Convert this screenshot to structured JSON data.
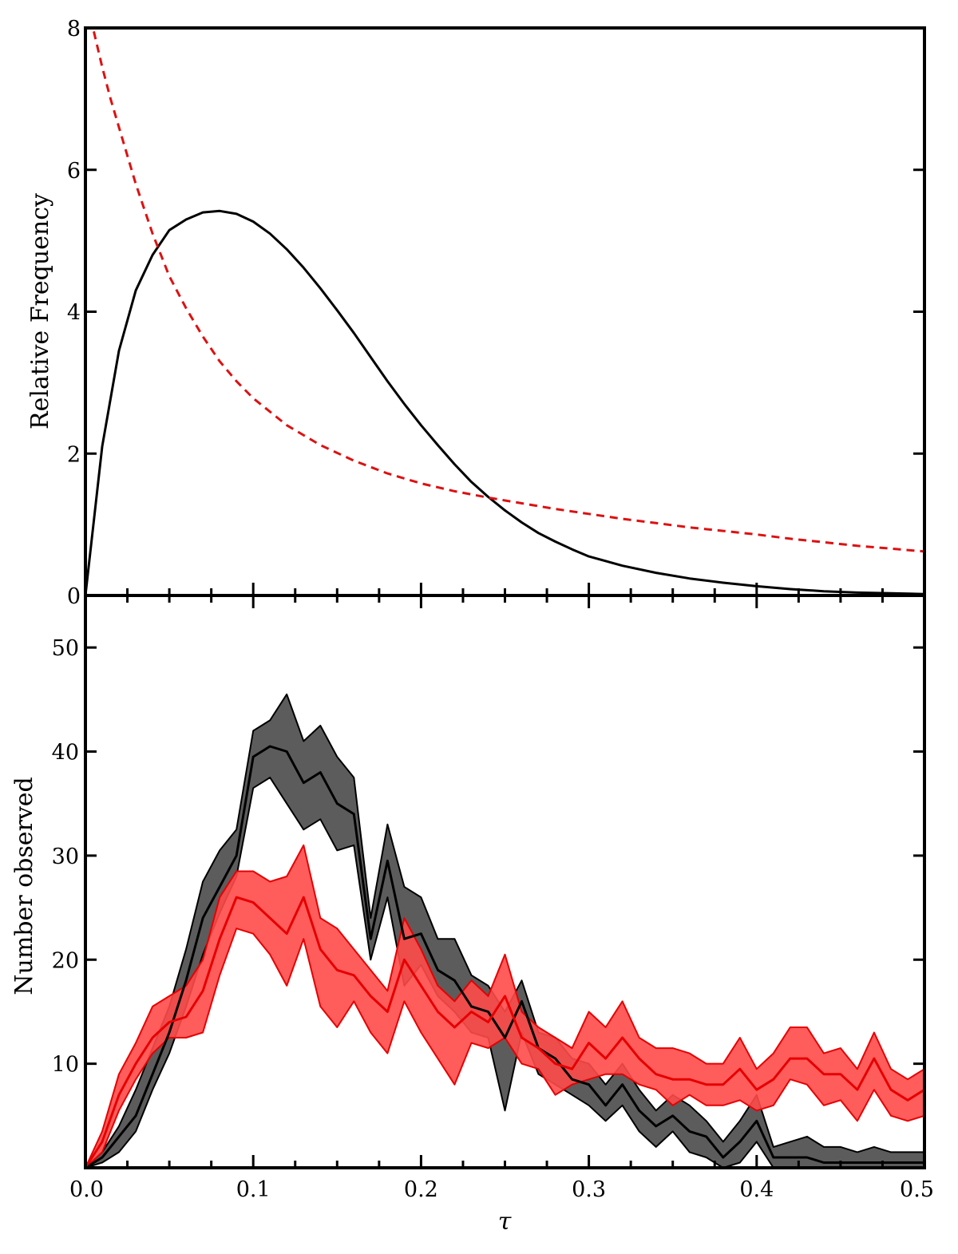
{
  "chart_data": [
    {
      "type": "line",
      "title": "",
      "xlabel": "",
      "ylabel": "Relative Frequency",
      "xlim": [
        0.0,
        0.5
      ],
      "ylim": [
        0,
        8
      ],
      "yticks": [
        0,
        2,
        4,
        6,
        8
      ],
      "ytick_labels": [
        "0",
        "2",
        "4",
        "6",
        "8"
      ],
      "grid": false,
      "colors": [
        "#000000",
        "#dd1111"
      ],
      "series": [
        {
          "style": "solid",
          "x": [
            0.0,
            0.01,
            0.02,
            0.03,
            0.04,
            0.05,
            0.06,
            0.07,
            0.08,
            0.09,
            0.1,
            0.11,
            0.12,
            0.13,
            0.14,
            0.15,
            0.16,
            0.17,
            0.18,
            0.19,
            0.2,
            0.21,
            0.22,
            0.23,
            0.24,
            0.25,
            0.26,
            0.27,
            0.28,
            0.29,
            0.3,
            0.32,
            0.34,
            0.36,
            0.38,
            0.4,
            0.42,
            0.44,
            0.46,
            0.48,
            0.5
          ],
          "y": [
            0.0,
            2.1,
            3.45,
            4.3,
            4.8,
            5.15,
            5.3,
            5.4,
            5.42,
            5.38,
            5.27,
            5.1,
            4.88,
            4.62,
            4.33,
            4.02,
            3.7,
            3.36,
            3.02,
            2.7,
            2.4,
            2.12,
            1.85,
            1.6,
            1.39,
            1.2,
            1.03,
            0.88,
            0.76,
            0.65,
            0.55,
            0.42,
            0.32,
            0.24,
            0.18,
            0.13,
            0.09,
            0.06,
            0.04,
            0.03,
            0.02
          ]
        },
        {
          "style": "dashed",
          "x": [
            0.005,
            0.01,
            0.015,
            0.02,
            0.03,
            0.04,
            0.05,
            0.06,
            0.07,
            0.08,
            0.09,
            0.1,
            0.12,
            0.14,
            0.16,
            0.18,
            0.2,
            0.22,
            0.24,
            0.26,
            0.28,
            0.3,
            0.32,
            0.34,
            0.36,
            0.38,
            0.4,
            0.42,
            0.44,
            0.46,
            0.48,
            0.5
          ],
          "y": [
            7.95,
            7.45,
            7.0,
            6.6,
            5.8,
            5.1,
            4.5,
            4.05,
            3.65,
            3.3,
            3.02,
            2.78,
            2.4,
            2.12,
            1.9,
            1.72,
            1.58,
            1.47,
            1.38,
            1.3,
            1.22,
            1.15,
            1.08,
            1.02,
            0.96,
            0.91,
            0.86,
            0.8,
            0.75,
            0.7,
            0.66,
            0.62
          ]
        }
      ]
    },
    {
      "type": "area",
      "title": "",
      "xlabel": "τ",
      "ylabel": "Number observed",
      "xlim": [
        0.0,
        0.5
      ],
      "ylim": [
        0,
        55
      ],
      "xticks": [
        0.0,
        0.1,
        0.2,
        0.3,
        0.4,
        0.5
      ],
      "xtick_labels": [
        "0.0",
        "0.1",
        "0.2",
        "0.3",
        "0.4",
        "0.5"
      ],
      "yticks": [
        10,
        20,
        30,
        40,
        50
      ],
      "ytick_labels": [
        "10",
        "20",
        "30",
        "40",
        "50"
      ],
      "grid": false,
      "series": [
        {
          "color": "#000000",
          "band_color": "#4a4a4a",
          "x": [
            0.0,
            0.01,
            0.02,
            0.03,
            0.04,
            0.05,
            0.06,
            0.07,
            0.08,
            0.09,
            0.1,
            0.11,
            0.12,
            0.13,
            0.14,
            0.15,
            0.16,
            0.17,
            0.18,
            0.19,
            0.2,
            0.21,
            0.22,
            0.23,
            0.24,
            0.25,
            0.26,
            0.27,
            0.28,
            0.29,
            0.3,
            0.31,
            0.32,
            0.33,
            0.34,
            0.35,
            0.36,
            0.37,
            0.38,
            0.39,
            0.4,
            0.41,
            0.42,
            0.43,
            0.44,
            0.45,
            0.46,
            0.47,
            0.48,
            0.49,
            0.5
          ],
          "y": [
            0.0,
            1.0,
            3.0,
            5.0,
            9.0,
            13.0,
            18.0,
            24.0,
            27.0,
            30.0,
            39.5,
            40.5,
            40.0,
            37.0,
            38.0,
            35.0,
            34.0,
            22.0,
            29.5,
            22.0,
            22.5,
            19.0,
            18.0,
            15.5,
            15.0,
            12.5,
            16.0,
            11.5,
            10.5,
            8.5,
            8.0,
            6.0,
            8.0,
            5.5,
            4.0,
            5.0,
            3.5,
            3.0,
            1.0,
            2.5,
            4.5,
            1.0,
            1.0,
            1.0,
            0.5,
            0.5,
            0.5,
            0.5,
            0.5,
            0.5,
            0.5
          ],
          "lower": [
            0.0,
            0.5,
            1.5,
            3.5,
            7.5,
            11.0,
            15.5,
            20.5,
            24.5,
            28.0,
            36.5,
            37.5,
            35.0,
            32.5,
            33.5,
            30.5,
            31.0,
            20.0,
            26.0,
            17.5,
            19.5,
            16.5,
            15.0,
            13.0,
            12.5,
            5.5,
            13.0,
            9.0,
            8.0,
            7.0,
            6.0,
            4.5,
            6.0,
            3.5,
            2.0,
            3.5,
            1.5,
            1.0,
            0.0,
            0.5,
            2.5,
            0.0,
            0.0,
            0.0,
            0.0,
            0.0,
            0.0,
            0.0,
            0.0,
            0.0,
            0.0
          ],
          "upper": [
            0.0,
            1.5,
            4.0,
            7.5,
            11.5,
            15.5,
            21.0,
            27.5,
            30.5,
            32.5,
            42.0,
            43.0,
            45.5,
            41.0,
            42.5,
            39.5,
            37.5,
            24.0,
            33.0,
            27.0,
            26.0,
            22.0,
            22.0,
            18.5,
            17.5,
            15.0,
            18.0,
            13.0,
            12.5,
            10.5,
            10.0,
            8.0,
            10.0,
            7.5,
            5.5,
            7.0,
            6.0,
            4.5,
            2.5,
            4.5,
            7.0,
            2.0,
            2.5,
            3.0,
            2.0,
            2.0,
            1.5,
            2.0,
            1.5,
            1.5,
            1.5
          ]
        },
        {
          "color": "#e60000",
          "band_color": "#ff4a4a",
          "x": [
            0.0,
            0.01,
            0.02,
            0.03,
            0.04,
            0.05,
            0.06,
            0.07,
            0.08,
            0.09,
            0.1,
            0.11,
            0.12,
            0.13,
            0.14,
            0.15,
            0.16,
            0.17,
            0.18,
            0.19,
            0.2,
            0.21,
            0.22,
            0.23,
            0.24,
            0.25,
            0.26,
            0.27,
            0.28,
            0.29,
            0.3,
            0.31,
            0.32,
            0.33,
            0.34,
            0.35,
            0.36,
            0.37,
            0.38,
            0.39,
            0.4,
            0.41,
            0.42,
            0.43,
            0.44,
            0.45,
            0.46,
            0.47,
            0.48,
            0.49,
            0.5
          ],
          "y": [
            0.0,
            2.5,
            7.0,
            10.0,
            12.5,
            14.0,
            14.5,
            17.0,
            22.0,
            26.0,
            25.5,
            24.0,
            22.5,
            26.0,
            21.0,
            19.0,
            18.5,
            16.5,
            15.0,
            20.0,
            17.5,
            15.0,
            13.5,
            15.0,
            14.0,
            16.5,
            12.5,
            11.5,
            10.0,
            9.5,
            12.0,
            10.5,
            12.5,
            10.5,
            9.0,
            8.5,
            8.5,
            8.0,
            8.0,
            9.5,
            7.5,
            8.5,
            10.5,
            10.5,
            9.0,
            9.0,
            7.5,
            10.5,
            7.5,
            6.5,
            7.5
          ],
          "lower": [
            0.0,
            1.5,
            5.5,
            8.5,
            11.0,
            12.5,
            12.5,
            13.0,
            18.5,
            23.0,
            22.5,
            20.5,
            17.5,
            22.0,
            15.5,
            13.5,
            16.0,
            13.0,
            11.0,
            16.0,
            13.0,
            10.5,
            8.0,
            12.0,
            11.5,
            12.5,
            10.0,
            9.5,
            7.0,
            8.0,
            8.5,
            9.0,
            9.0,
            8.0,
            7.5,
            6.0,
            7.0,
            6.0,
            6.0,
            6.5,
            5.5,
            6.0,
            8.5,
            8.0,
            6.0,
            6.5,
            4.5,
            7.5,
            5.0,
            4.5,
            5.0
          ],
          "upper": [
            0.0,
            3.5,
            9.0,
            12.0,
            15.5,
            16.5,
            17.5,
            20.0,
            26.0,
            28.5,
            28.5,
            27.5,
            28.0,
            31.0,
            24.0,
            23.0,
            21.0,
            19.0,
            17.0,
            24.0,
            21.0,
            17.5,
            16.0,
            18.0,
            16.5,
            20.5,
            15.0,
            13.5,
            12.5,
            11.5,
            15.0,
            13.5,
            16.0,
            12.5,
            11.5,
            11.5,
            11.0,
            10.0,
            10.0,
            12.5,
            9.5,
            11.0,
            13.5,
            13.5,
            11.0,
            11.5,
            9.5,
            13.0,
            9.5,
            8.5,
            9.5
          ]
        }
      ]
    }
  ]
}
